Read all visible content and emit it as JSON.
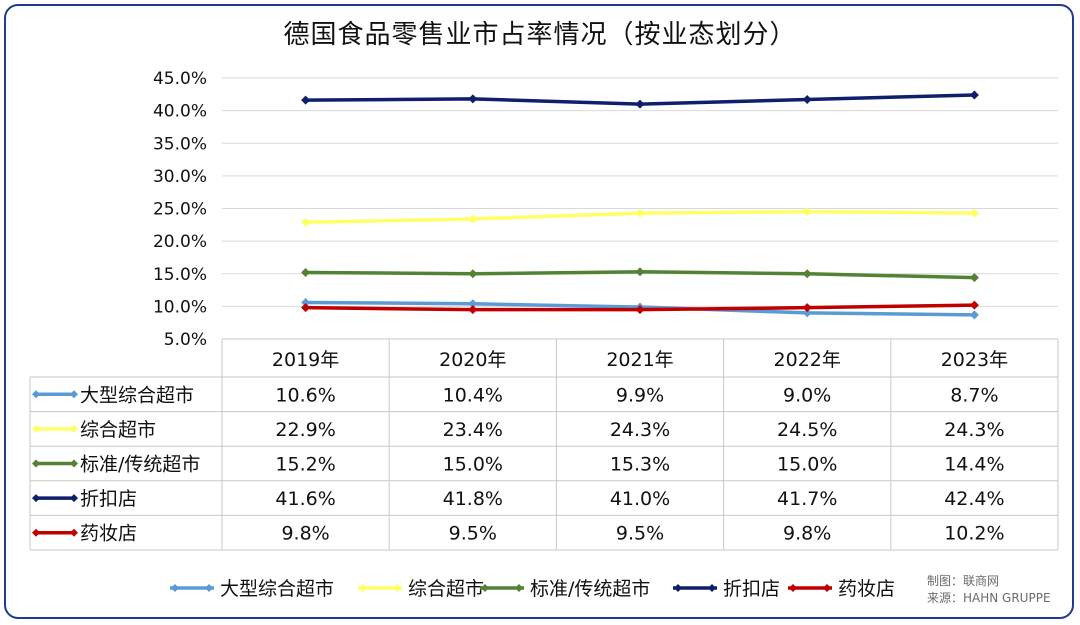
{
  "title": "德国食品零售业市占率情况（按业态划分）",
  "credits": {
    "made_by": "制图：联商网",
    "source": "来源：HAHN GRUPPE"
  },
  "chart_data": {
    "type": "line",
    "categories": [
      "2019年",
      "2020年",
      "2021年",
      "2022年",
      "2023年"
    ],
    "y_ticks": [
      "5.0%",
      "10.0%",
      "15.0%",
      "20.0%",
      "25.0%",
      "30.0%",
      "35.0%",
      "40.0%",
      "45.0%"
    ],
    "ylim": [
      5,
      45
    ],
    "grid": true,
    "legend_position": "bottom",
    "data_table": true,
    "series": [
      {
        "name": "大型综合超市",
        "color": "#5b9bd5",
        "values": [
          10.6,
          10.4,
          9.9,
          9.0,
          8.7
        ],
        "labels": [
          "10.6%",
          "10.4%",
          "9.9%",
          "9.0%",
          "8.7%"
        ]
      },
      {
        "name": "综合超市",
        "color": "#ffff66",
        "values": [
          22.9,
          23.4,
          24.3,
          24.5,
          24.3
        ],
        "labels": [
          "22.9%",
          "23.4%",
          "24.3%",
          "24.5%",
          "24.3%"
        ]
      },
      {
        "name": "标准/传统超市",
        "color": "#548235",
        "values": [
          15.2,
          15.0,
          15.3,
          15.0,
          14.4
        ],
        "labels": [
          "15.2%",
          "15.0%",
          "15.3%",
          "15.0%",
          "14.4%"
        ]
      },
      {
        "name": "折扣店",
        "color": "#0e1f6b",
        "values": [
          41.6,
          41.8,
          41.0,
          41.7,
          42.4
        ],
        "labels": [
          "41.6%",
          "41.8%",
          "41.0%",
          "41.7%",
          "42.4%"
        ]
      },
      {
        "name": "药妆店",
        "color": "#c00000",
        "values": [
          9.8,
          9.5,
          9.5,
          9.8,
          10.2
        ],
        "labels": [
          "9.8%",
          "9.5%",
          "9.5%",
          "9.8%",
          "10.2%"
        ]
      }
    ]
  }
}
